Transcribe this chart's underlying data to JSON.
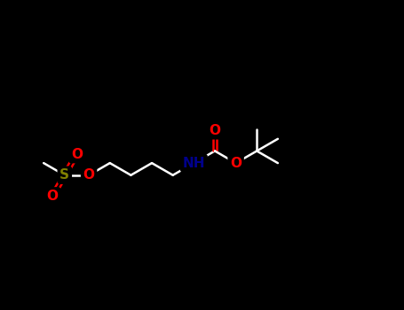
{
  "bg_color": "#000000",
  "bond_color": "#ffffff",
  "S_color": "#808000",
  "O_color": "#ff0000",
  "N_color": "#00008b",
  "lw": 1.8,
  "fs": 11,
  "figw": 4.55,
  "figh": 3.5,
  "dpi": 100,
  "xlim": [
    0.0,
    10.0
  ],
  "ylim": [
    2.5,
    6.5
  ]
}
